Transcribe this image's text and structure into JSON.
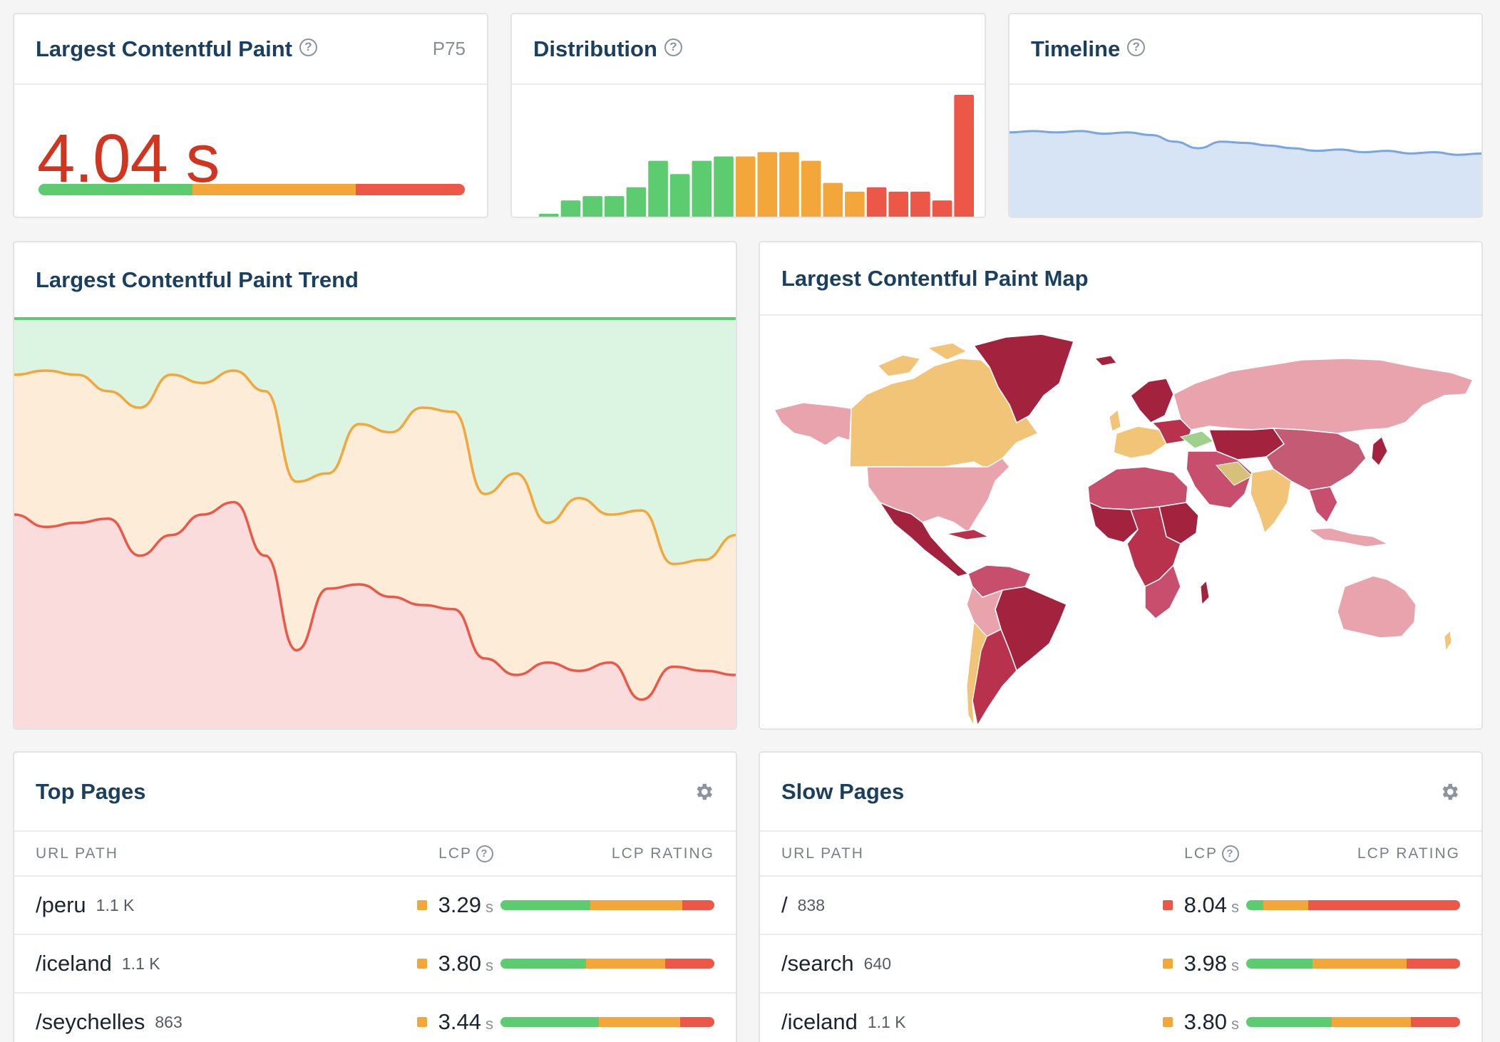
{
  "lcp_card": {
    "title": "Largest Contentful Paint",
    "percentile": "P75",
    "value": "4.04 s",
    "split": {
      "good": 0.362,
      "needs_improvement": 0.382,
      "poor": 0.256
    }
  },
  "distribution_card": {
    "title": "Distribution"
  },
  "timeline_card": {
    "title": "Timeline"
  },
  "trend_card": {
    "title": "Largest Contentful Paint Trend"
  },
  "map_card": {
    "title": "Largest Contentful Paint Map"
  },
  "colors": {
    "good": "#5dcc71",
    "needs_improvement": "#f3a73b",
    "poor": "#ec5748",
    "title": "#1b3f5f"
  },
  "top_pages": {
    "title": "Top Pages",
    "columns": {
      "url": "URL PATH",
      "lcp": "LCP",
      "rating": "LCP RATING"
    },
    "rows": [
      {
        "url": "/peru",
        "count": "1.1 K",
        "lcp": "3.29",
        "unit": "s",
        "status": "needs_improvement",
        "split": [
          0.42,
          0.43,
          0.15
        ]
      },
      {
        "url": "/iceland",
        "count": "1.1 K",
        "lcp": "3.80",
        "unit": "s",
        "status": "needs_improvement",
        "split": [
          0.4,
          0.37,
          0.23
        ]
      },
      {
        "url": "/seychelles",
        "count": "863",
        "lcp": "3.44",
        "unit": "s",
        "status": "needs_improvement",
        "split": [
          0.46,
          0.38,
          0.16
        ]
      }
    ]
  },
  "slow_pages": {
    "title": "Slow Pages",
    "columns": {
      "url": "URL PATH",
      "lcp": "LCP",
      "rating": "LCP RATING"
    },
    "rows": [
      {
        "url": "/",
        "count": "838",
        "lcp": "8.04",
        "unit": "s",
        "status": "poor",
        "split": [
          0.08,
          0.21,
          0.71
        ]
      },
      {
        "url": "/search",
        "count": "640",
        "lcp": "3.98",
        "unit": "s",
        "status": "needs_improvement",
        "split": [
          0.31,
          0.44,
          0.25
        ]
      },
      {
        "url": "/iceland",
        "count": "1.1 K",
        "lcp": "3.80",
        "unit": "s",
        "status": "needs_improvement",
        "split": [
          0.4,
          0.37,
          0.23
        ]
      }
    ]
  },
  "chart_data": [
    {
      "type": "bar",
      "name": "distribution",
      "values": [
        1,
        4,
        5,
        5,
        7,
        13,
        10,
        13,
        14,
        14,
        15,
        15,
        13,
        8,
        6,
        7,
        6,
        6,
        4,
        28
      ],
      "colors": [
        "green",
        "green",
        "green",
        "green",
        "green",
        "green",
        "green",
        "green",
        "green",
        "orange",
        "orange",
        "orange",
        "orange",
        "orange",
        "orange",
        "red",
        "red",
        "red",
        "red",
        "red"
      ]
    },
    {
      "type": "area",
      "name": "timeline",
      "values": [
        0.65,
        0.66,
        0.65,
        0.66,
        0.64,
        0.65,
        0.63,
        0.58,
        0.53,
        0.58,
        0.57,
        0.55,
        0.53,
        0.51,
        0.52,
        0.5,
        0.51,
        0.49,
        0.5,
        0.48,
        0.49
      ]
    },
    {
      "type": "area",
      "name": "trend",
      "upper": [
        0.86,
        0.87,
        0.86,
        0.82,
        0.78,
        0.86,
        0.84,
        0.87,
        0.82,
        0.6,
        0.62,
        0.74,
        0.72,
        0.78,
        0.77,
        0.57,
        0.62,
        0.5,
        0.56,
        0.52,
        0.53,
        0.4,
        0.41,
        0.47
      ],
      "lower": [
        0.52,
        0.49,
        0.5,
        0.51,
        0.42,
        0.47,
        0.52,
        0.55,
        0.42,
        0.19,
        0.34,
        0.35,
        0.32,
        0.3,
        0.29,
        0.17,
        0.13,
        0.16,
        0.14,
        0.16,
        0.07,
        0.15,
        0.14,
        0.13
      ]
    }
  ]
}
